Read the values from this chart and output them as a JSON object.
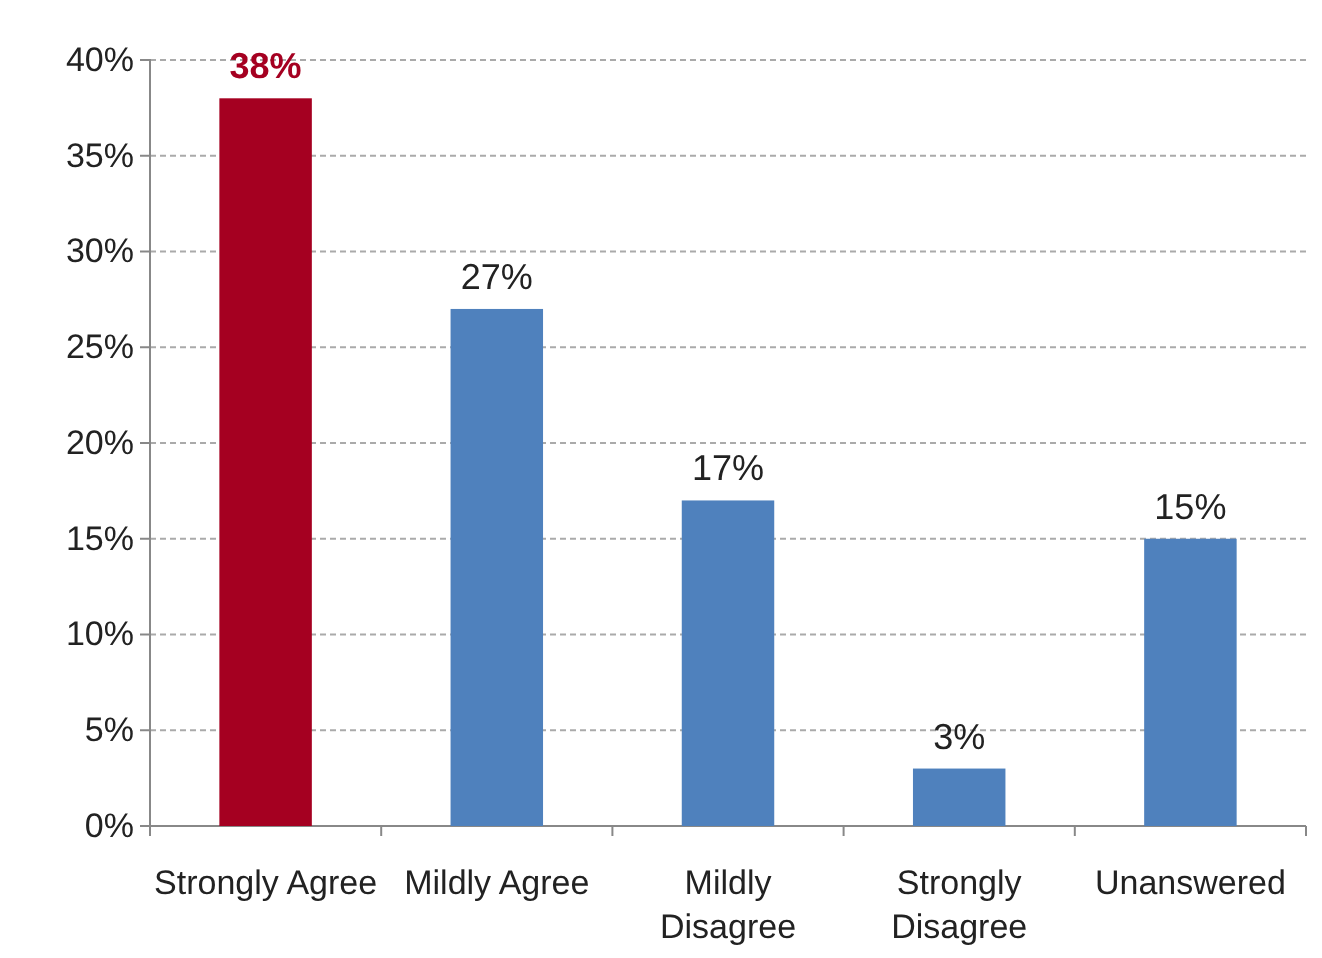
{
  "chart_data": {
    "type": "bar",
    "categories": [
      "Strongly Agree",
      "Mildly Agree",
      "Mildly Disagree",
      "Strongly Disagree",
      "Unanswered"
    ],
    "values": [
      38,
      27,
      17,
      3,
      15
    ],
    "colors": [
      "#a50021",
      "#4f81bd",
      "#4f81bd",
      "#4f81bd",
      "#4f81bd"
    ],
    "value_labels": [
      "38%",
      "27%",
      "17%",
      "3%",
      "15%"
    ],
    "ylim": [
      0,
      40
    ],
    "yticks": [
      {
        "value": 0,
        "label": "0%"
      },
      {
        "value": 5,
        "label": "5%"
      },
      {
        "value": 10,
        "label": "10%"
      },
      {
        "value": 15,
        "label": "15%"
      },
      {
        "value": 20,
        "label": "20%"
      },
      {
        "value": 25,
        "label": "25%"
      },
      {
        "value": 30,
        "label": "30%"
      },
      {
        "value": 35,
        "label": "35%"
      },
      {
        "value": 40,
        "label": "40%"
      }
    ],
    "grid": "y"
  }
}
